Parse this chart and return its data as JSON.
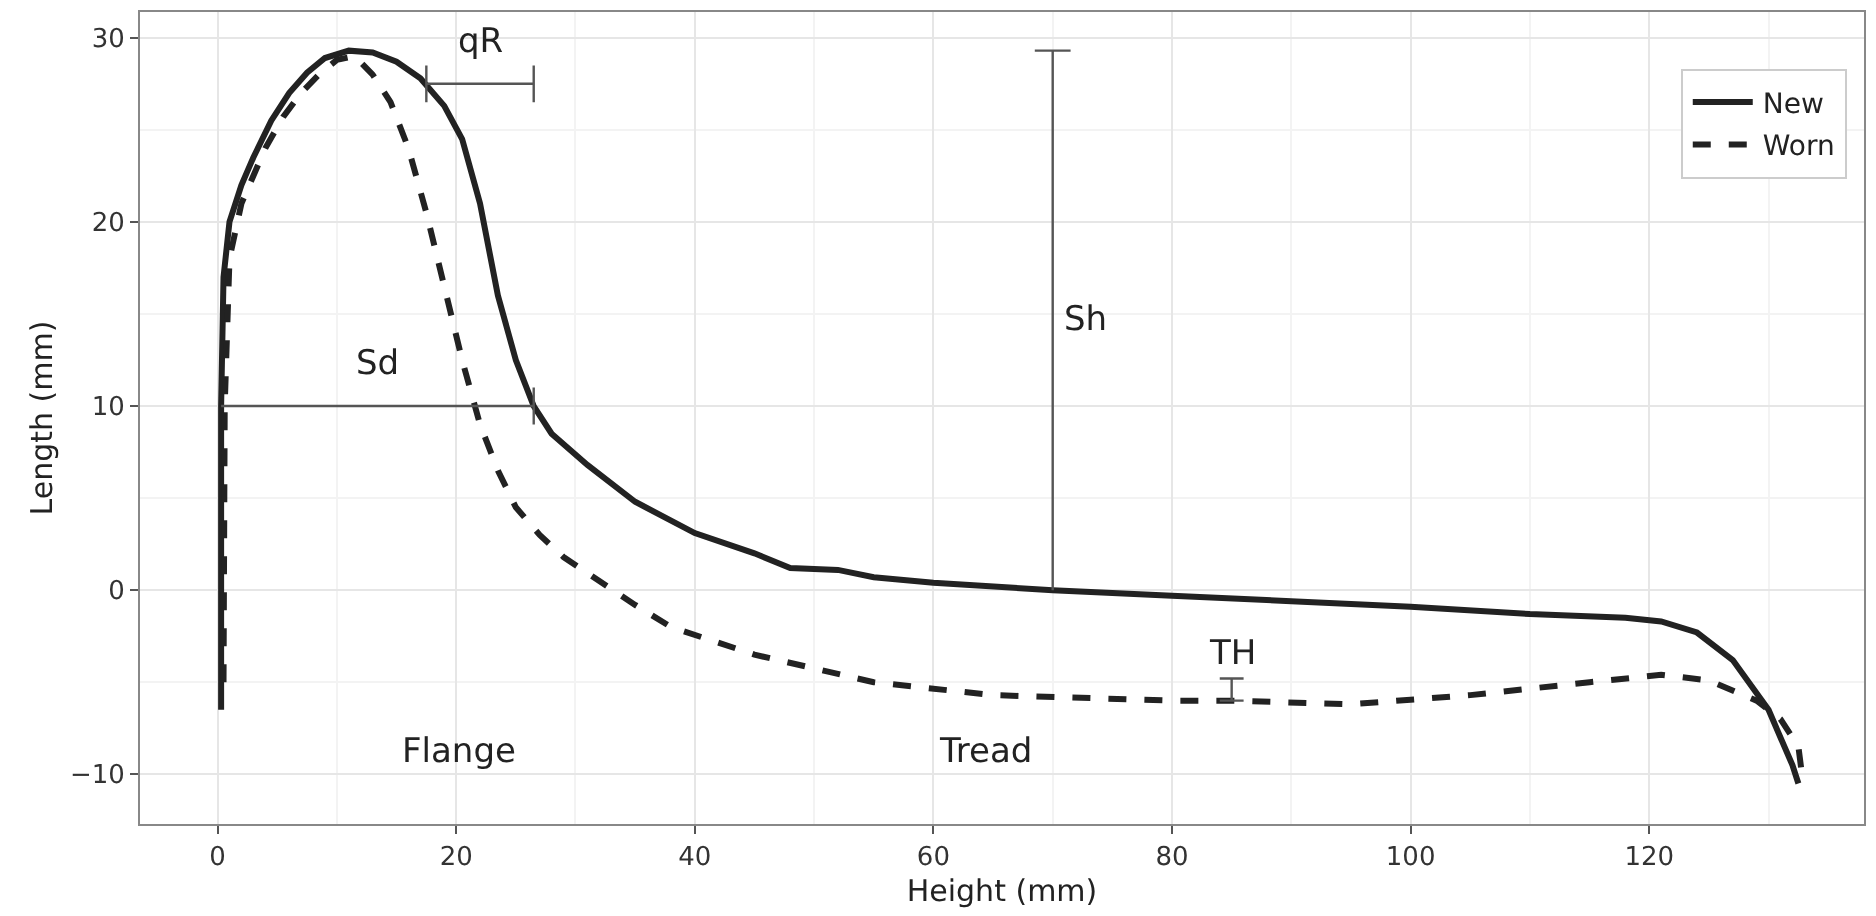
{
  "chart_data": {
    "type": "line",
    "xlabel": "Height (mm)",
    "ylabel": "Length (mm)",
    "xlim": [
      -6.5,
      138
    ],
    "ylim": [
      -12.7,
      31.4
    ],
    "xticks": [
      0,
      20,
      40,
      60,
      80,
      100,
      120
    ],
    "yticks": [
      -10,
      0,
      10,
      20,
      30
    ],
    "grid": true,
    "legend": "top right",
    "marker": "none",
    "series": [
      {
        "name": "New",
        "color": "#222222",
        "line_style": "solid",
        "x": [
          0.3,
          0.3,
          0.5,
          1,
          2,
          3,
          4.5,
          6,
          7.5,
          9,
          11,
          13,
          15,
          17,
          19,
          20.5,
          22,
          23.5,
          25,
          26.5,
          28,
          31,
          35,
          40,
          45,
          48,
          52,
          55,
          60,
          70,
          80,
          90,
          100,
          110,
          118,
          121,
          124,
          127,
          130,
          132,
          132.5
        ],
        "values": [
          -6.5,
          10,
          17,
          20,
          22,
          23.5,
          25.5,
          27,
          28.1,
          28.9,
          29.3,
          29.2,
          28.7,
          27.8,
          26.3,
          24.5,
          21,
          16,
          12.5,
          10,
          8.5,
          6.8,
          4.8,
          3.1,
          2,
          1.2,
          1.1,
          0.7,
          0.4,
          0,
          -0.3,
          -0.6,
          -0.9,
          -1.3,
          -1.5,
          -1.7,
          -2.3,
          -3.8,
          -6.5,
          -9.5,
          -10.5
        ]
      },
      {
        "name": "Worn",
        "color": "#222222",
        "line_style": "dashed",
        "x": [
          0.5,
          0.6,
          1,
          2,
          4,
          5.5,
          7,
          8.5,
          10,
          11.5,
          13,
          14.5,
          16,
          17.5,
          19,
          20.5,
          22,
          23.5,
          25,
          27,
          29,
          32,
          35,
          38,
          45,
          55,
          65,
          80,
          85,
          95,
          105,
          115,
          121,
          125,
          129,
          131,
          132.5,
          132.8
        ],
        "values": [
          -5,
          10,
          18,
          21,
          24,
          25.7,
          27,
          28,
          28.8,
          29,
          28,
          26.5,
          24,
          20.5,
          16.5,
          12.5,
          9,
          6.5,
          4.5,
          3,
          1.8,
          0.5,
          -0.8,
          -2,
          -3.5,
          -5,
          -5.7,
          -6,
          -6,
          -6.2,
          -5.7,
          -5,
          -4.6,
          -4.9,
          -6,
          -7,
          -8.5,
          -10
        ]
      },
      {
        "name": "qR",
        "color": "#555555",
        "line_style": "solid",
        "x": [
          17.5,
          17.5,
          17.5,
          26.5,
          26.5,
          26.5
        ],
        "values": [
          26.5,
          28.5,
          27.5,
          27.5,
          26.5,
          28.5
        ]
      },
      {
        "name": "Sd",
        "color": "#555555",
        "line_style": "solid",
        "x": [
          0.3,
          26.5,
          26.5,
          26.5
        ],
        "values": [
          10,
          10,
          9,
          11
        ]
      },
      {
        "name": "Sh",
        "color": "#555555",
        "line_style": "solid",
        "x": [
          68.5,
          71.5,
          70,
          70
        ],
        "values": [
          29.3,
          29.3,
          29.3,
          0
        ]
      },
      {
        "name": "TH",
        "color": "#555555",
        "line_style": "solid",
        "x": [
          84,
          86,
          85,
          85,
          84,
          86
        ],
        "values": [
          -4.8,
          -4.8,
          -4.8,
          -6,
          -6,
          -6
        ]
      }
    ],
    "annotations": [
      "Flange",
      "Tread"
    ]
  }
}
